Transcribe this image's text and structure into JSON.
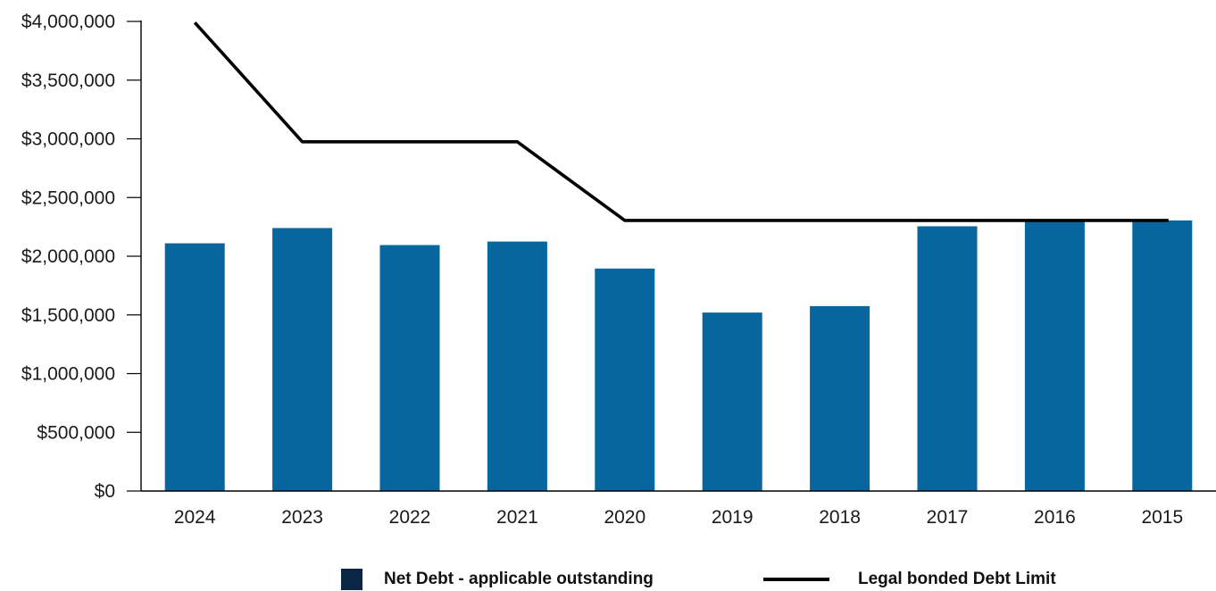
{
  "chart_data": {
    "type": "bar",
    "categories": [
      "2024",
      "2023",
      "2022",
      "2021",
      "2020",
      "2019",
      "2018",
      "2017",
      "2016",
      "2015"
    ],
    "series": [
      {
        "name": "Net Debt - applicable outstanding",
        "type": "bar",
        "color": "#07669e",
        "values": [
          2110000,
          2240000,
          2095000,
          2125000,
          1895000,
          1520000,
          1575000,
          2255000,
          2305000,
          2305000
        ]
      },
      {
        "name": "Legal bonded Debt Limit",
        "type": "line",
        "color": "#000000",
        "values": [
          3990000,
          2975000,
          2975000,
          2975000,
          2305000,
          2305000,
          2305000,
          2305000,
          2305000,
          2305000
        ]
      }
    ],
    "yticks": [
      "$0",
      "$500,000",
      "$1,000,000",
      "$1,500,000",
      "$2,000,000",
      "$2,500,000",
      "$3,000,000",
      "$3,500,000",
      "$4,000,000"
    ],
    "ylim": [
      0,
      4000000
    ],
    "grid": false,
    "legend_position": "bottom",
    "title": "",
    "xlabel": "",
    "ylabel": ""
  },
  "legend": {
    "bar_label": "Net Debt - applicable outstanding",
    "line_label": "Legal bonded Debt Limit",
    "legend_swatch_color": "#0b2545"
  }
}
